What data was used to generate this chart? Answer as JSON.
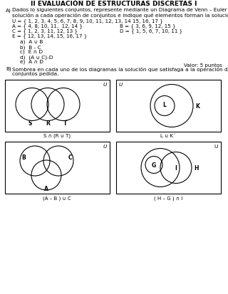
{
  "title": "II EVALUACIÓN DE ESTRUCTURAS DISCRETAS I",
  "section_a_text1": "Dados lo siguientes conjuntos, represente mediante un Diagrama de Venn – Euler la",
  "section_a_text2": "solución a cada operación de conjuntos e indique qué elementos forman la solución.",
  "sets_line1": "U = { 1, 2, 3, 4, 5, 6, 7, 8, 9, 10, 11, 12, 13, 14 15, 16, 17 }",
  "sets_line2a": "A = { 4, 8, 10, 11,  12, 14 }",
  "sets_line2b": "B = { 3, 6, 9, 12, 15 }",
  "sets_line3a": "C = { 1, 2, 3, 11, 12, 13 }",
  "sets_line3b": "D = { 1, 5, 6, 7, 10, 11 }",
  "sets_line4": "E = { 12, 13, 14, 15, 16, 17 }",
  "items": [
    "a)  A ∪ B",
    "b)  B - C",
    "c)  E ∩ D",
    "d)  (A ∪ C)-D",
    "e)  A ∩ D"
  ],
  "valor": "Valor: 5 puntos",
  "section_b_text1": "Sombrea en cada uno de los diagramas la solución que satisfaga a la operación de",
  "section_b_text2": "conjuntos pedida.",
  "diagram_labels": [
    "S ∩ (R ∪ T)",
    "L ∪ K´",
    "(A – B ) ∪ C",
    "( H – G ) ∩ I"
  ]
}
